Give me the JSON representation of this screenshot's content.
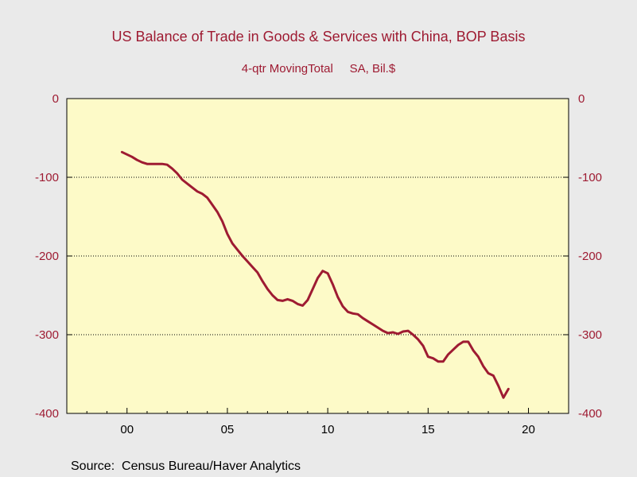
{
  "chart_data": {
    "type": "line",
    "title": "US Balance of Trade in Goods & Services with China, BOP Basis",
    "subtitle": "4-qtr MovingTotal     SA, Bil.$",
    "source": "Source:  Census Bureau/Haver Analytics",
    "xlim": [
      1997,
      2022
    ],
    "ylim": [
      -400,
      0
    ],
    "x_ticks": [
      {
        "x": 2000,
        "label": "00"
      },
      {
        "x": 2005,
        "label": "05"
      },
      {
        "x": 2010,
        "label": "10"
      },
      {
        "x": 2015,
        "label": "15"
      },
      {
        "x": 2020,
        "label": "20"
      }
    ],
    "y_ticks": [
      {
        "y": 0,
        "label": "0"
      },
      {
        "y": -100,
        "label": "-100"
      },
      {
        "y": -200,
        "label": "-200"
      },
      {
        "y": -300,
        "label": "-300"
      },
      {
        "y": -400,
        "label": "-400"
      }
    ],
    "grid": "horizontal",
    "background": "#fdfac8",
    "line_color": "#9e1b32",
    "series": [
      {
        "x": [
          1999.75,
          2000.0,
          2000.25,
          2000.5,
          2000.75,
          2001.0,
          2001.25,
          2001.5,
          2001.75,
          2002.0,
          2002.25,
          2002.5,
          2002.75,
          2003.0,
          2003.25,
          2003.5,
          2003.75,
          2004.0,
          2004.25,
          2004.5,
          2004.75,
          2005.0,
          2005.25,
          2005.5,
          2005.75,
          2006.0,
          2006.25,
          2006.5,
          2006.75,
          2007.0,
          2007.25,
          2007.5,
          2007.75,
          2008.0,
          2008.25,
          2008.5,
          2008.75,
          2009.0,
          2009.25,
          2009.5,
          2009.75,
          2010.0,
          2010.25,
          2010.5,
          2010.75,
          2011.0,
          2011.25,
          2011.5,
          2011.75,
          2012.0,
          2012.25,
          2012.5,
          2012.75,
          2013.0,
          2013.25,
          2013.5,
          2013.75,
          2014.0,
          2014.25,
          2014.5,
          2014.75,
          2015.0,
          2015.25,
          2015.5,
          2015.75,
          2016.0,
          2016.25,
          2016.5,
          2016.75,
          2017.0,
          2017.25,
          2017.5,
          2017.75,
          2018.0,
          2018.25,
          2018.5,
          2018.75,
          2019.0
        ],
        "y": [
          -68,
          -71,
          -74,
          -78,
          -81,
          -83,
          -83,
          -83,
          -83,
          -84,
          -89,
          -95,
          -103,
          -108,
          -113,
          -118,
          -121,
          -126,
          -135,
          -144,
          -156,
          -172,
          -184,
          -192,
          -200,
          -207,
          -214,
          -221,
          -232,
          -242,
          -250,
          -256,
          -257,
          -255,
          -257,
          -261,
          -263,
          -256,
          -242,
          -228,
          -219,
          -222,
          -236,
          -252,
          -264,
          -271,
          -273,
          -274,
          -279,
          -283,
          -287,
          -291,
          -295,
          -298,
          -297,
          -299,
          -296,
          -295,
          -300,
          -306,
          -314,
          -328,
          -330,
          -334,
          -334,
          -325,
          -319,
          -313,
          -309,
          -309,
          -320,
          -328,
          -340,
          -349,
          -352,
          -365,
          -380,
          -369
        ]
      }
    ]
  }
}
